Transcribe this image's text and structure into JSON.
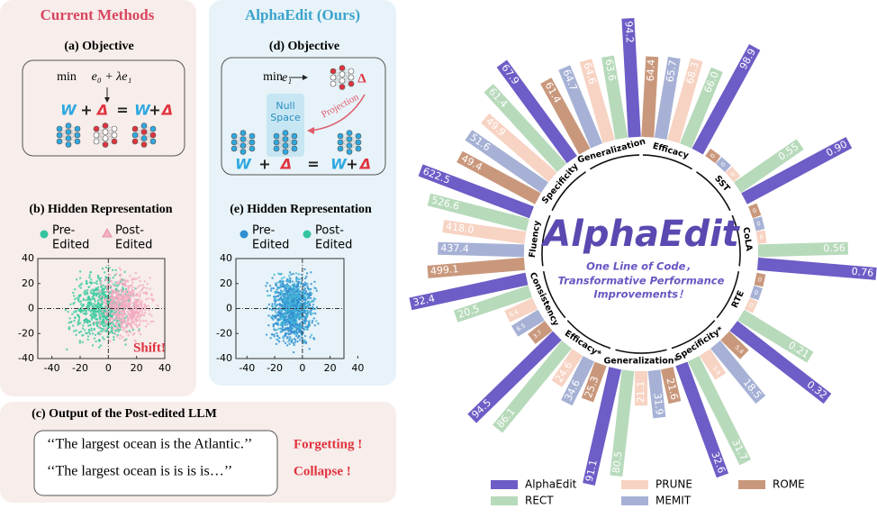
{
  "left": {
    "header": "Current Methods",
    "objective": {
      "title": "(a) Objective",
      "min": "min",
      "formula": "e₀ + λe₁",
      "equation": [
        "W",
        "+",
        "Δ",
        "=",
        "W",
        "+",
        "Δ"
      ]
    },
    "hidden": {
      "title": "(b) Hidden Representation",
      "legend": [
        [
          "Pre-",
          "Edited"
        ],
        [
          "Post-",
          "Edited"
        ]
      ],
      "annotation": "Shift!",
      "xlim": [
        -50,
        40
      ],
      "ylim": [
        -40,
        40
      ],
      "xticks": [
        -40,
        -20,
        0,
        20,
        40
      ],
      "yticks": [
        -40,
        -20,
        0,
        20,
        40
      ]
    },
    "output": {
      "title": "(c) Output of the Post-edited LLM",
      "lines": [
        {
          "text": "‘‘The largest ocean is the Atlantic.’’",
          "tag": "Forgetting !"
        },
        {
          "text": "‘‘The largest ocean is is is is…’’",
          "tag": "Collapse !"
        }
      ]
    }
  },
  "middle": {
    "header": "AlphaEdit (Ours)",
    "objective": {
      "title": "(d) Objective",
      "min": "min",
      "formula": "e₁",
      "delta": "Δ",
      "projection": "Projection",
      "null_space": [
        "Null",
        "Space"
      ],
      "equation": [
        "W",
        "+",
        "Δ",
        "=",
        "W",
        "+",
        "Δ"
      ]
    },
    "hidden": {
      "title": "(e) Hidden Representation",
      "legend": [
        [
          "Pre-",
          "Edited"
        ],
        [
          "Post-",
          "Edited"
        ]
      ],
      "xlim": [
        -48,
        30
      ],
      "ylim": [
        -40,
        40
      ],
      "xticks": [
        -40,
        -20,
        0,
        20,
        40
      ],
      "yticks": [
        -40,
        -20,
        0,
        20,
        40
      ]
    }
  },
  "radial": {
    "center_title": "AlphaEdit",
    "center_subtitle": [
      "One Line of Code，",
      "Transformative Performance",
      "Improvements！"
    ],
    "categories": [
      "Generalization",
      "Efficacy",
      "SST",
      "CoLA",
      "RTE",
      "Specificity*",
      "Generalization*",
      "Efficacy*",
      "Consistency",
      "Fluency",
      "Specificity"
    ],
    "series": [
      {
        "name": "AlphaEdit",
        "color": "#6d5dc6",
        "values": [
          94.2,
          98.9,
          0.9,
          0.76,
          0.32,
          32.6,
          91.1,
          94.5,
          32.4,
          622.5,
          67.9
        ],
        "value_labels": [
          "94.2",
          "98.9",
          "0.90",
          "0.76",
          "0.32",
          "32.6",
          "91.1",
          "94.5",
          "32.4",
          "622.5",
          "67.9"
        ]
      },
      {
        "name": "RECT",
        "color": "#b7dabb",
        "values": [
          63.6,
          66.0,
          0.55,
          0.56,
          0.21,
          31.7,
          80.5,
          86.1,
          20.5,
          526.6,
          61.4
        ],
        "value_labels": [
          "63.6",
          "66.0",
          "0.55",
          "0.56",
          "0.21",
          "31.7",
          "80.5",
          "86.1",
          "20.5",
          "526.6",
          "61.4"
        ]
      },
      {
        "name": "PRUNE",
        "color": "#f7d3c3",
        "values": [
          64.6,
          68.3,
          0,
          0,
          0,
          5.9,
          21.1,
          24.6,
          6.4,
          418.0,
          49.9
        ],
        "value_labels": [
          "64.6",
          "68.3",
          "0",
          "0",
          "0",
          "5.9",
          "21.1",
          "24.6",
          "6.4",
          "418.0",
          "49.9"
        ]
      },
      {
        "name": "MEMIT",
        "color": "#a6b1d5",
        "values": [
          64.7,
          65.7,
          0,
          0,
          0,
          18.5,
          31.9,
          34.6,
          6.5,
          437.4,
          51.6
        ],
        "value_labels": [
          "64.7",
          "65.7",
          "0",
          "0",
          "0",
          "18.5",
          "31.9",
          "34.6",
          "6.5",
          "437.4",
          "51.6"
        ]
      },
      {
        "name": "ROME",
        "color": "#c9987c",
        "values": [
          61.4,
          64.4,
          0,
          0,
          0,
          5.4,
          21.6,
          25.3,
          3.7,
          499.1,
          49.4
        ],
        "value_labels": [
          "61.4",
          "64.4",
          "0",
          "0",
          "0",
          "5.4",
          "21.6",
          "25.3",
          "3.7",
          "499.1",
          "49.4"
        ]
      }
    ]
  }
}
